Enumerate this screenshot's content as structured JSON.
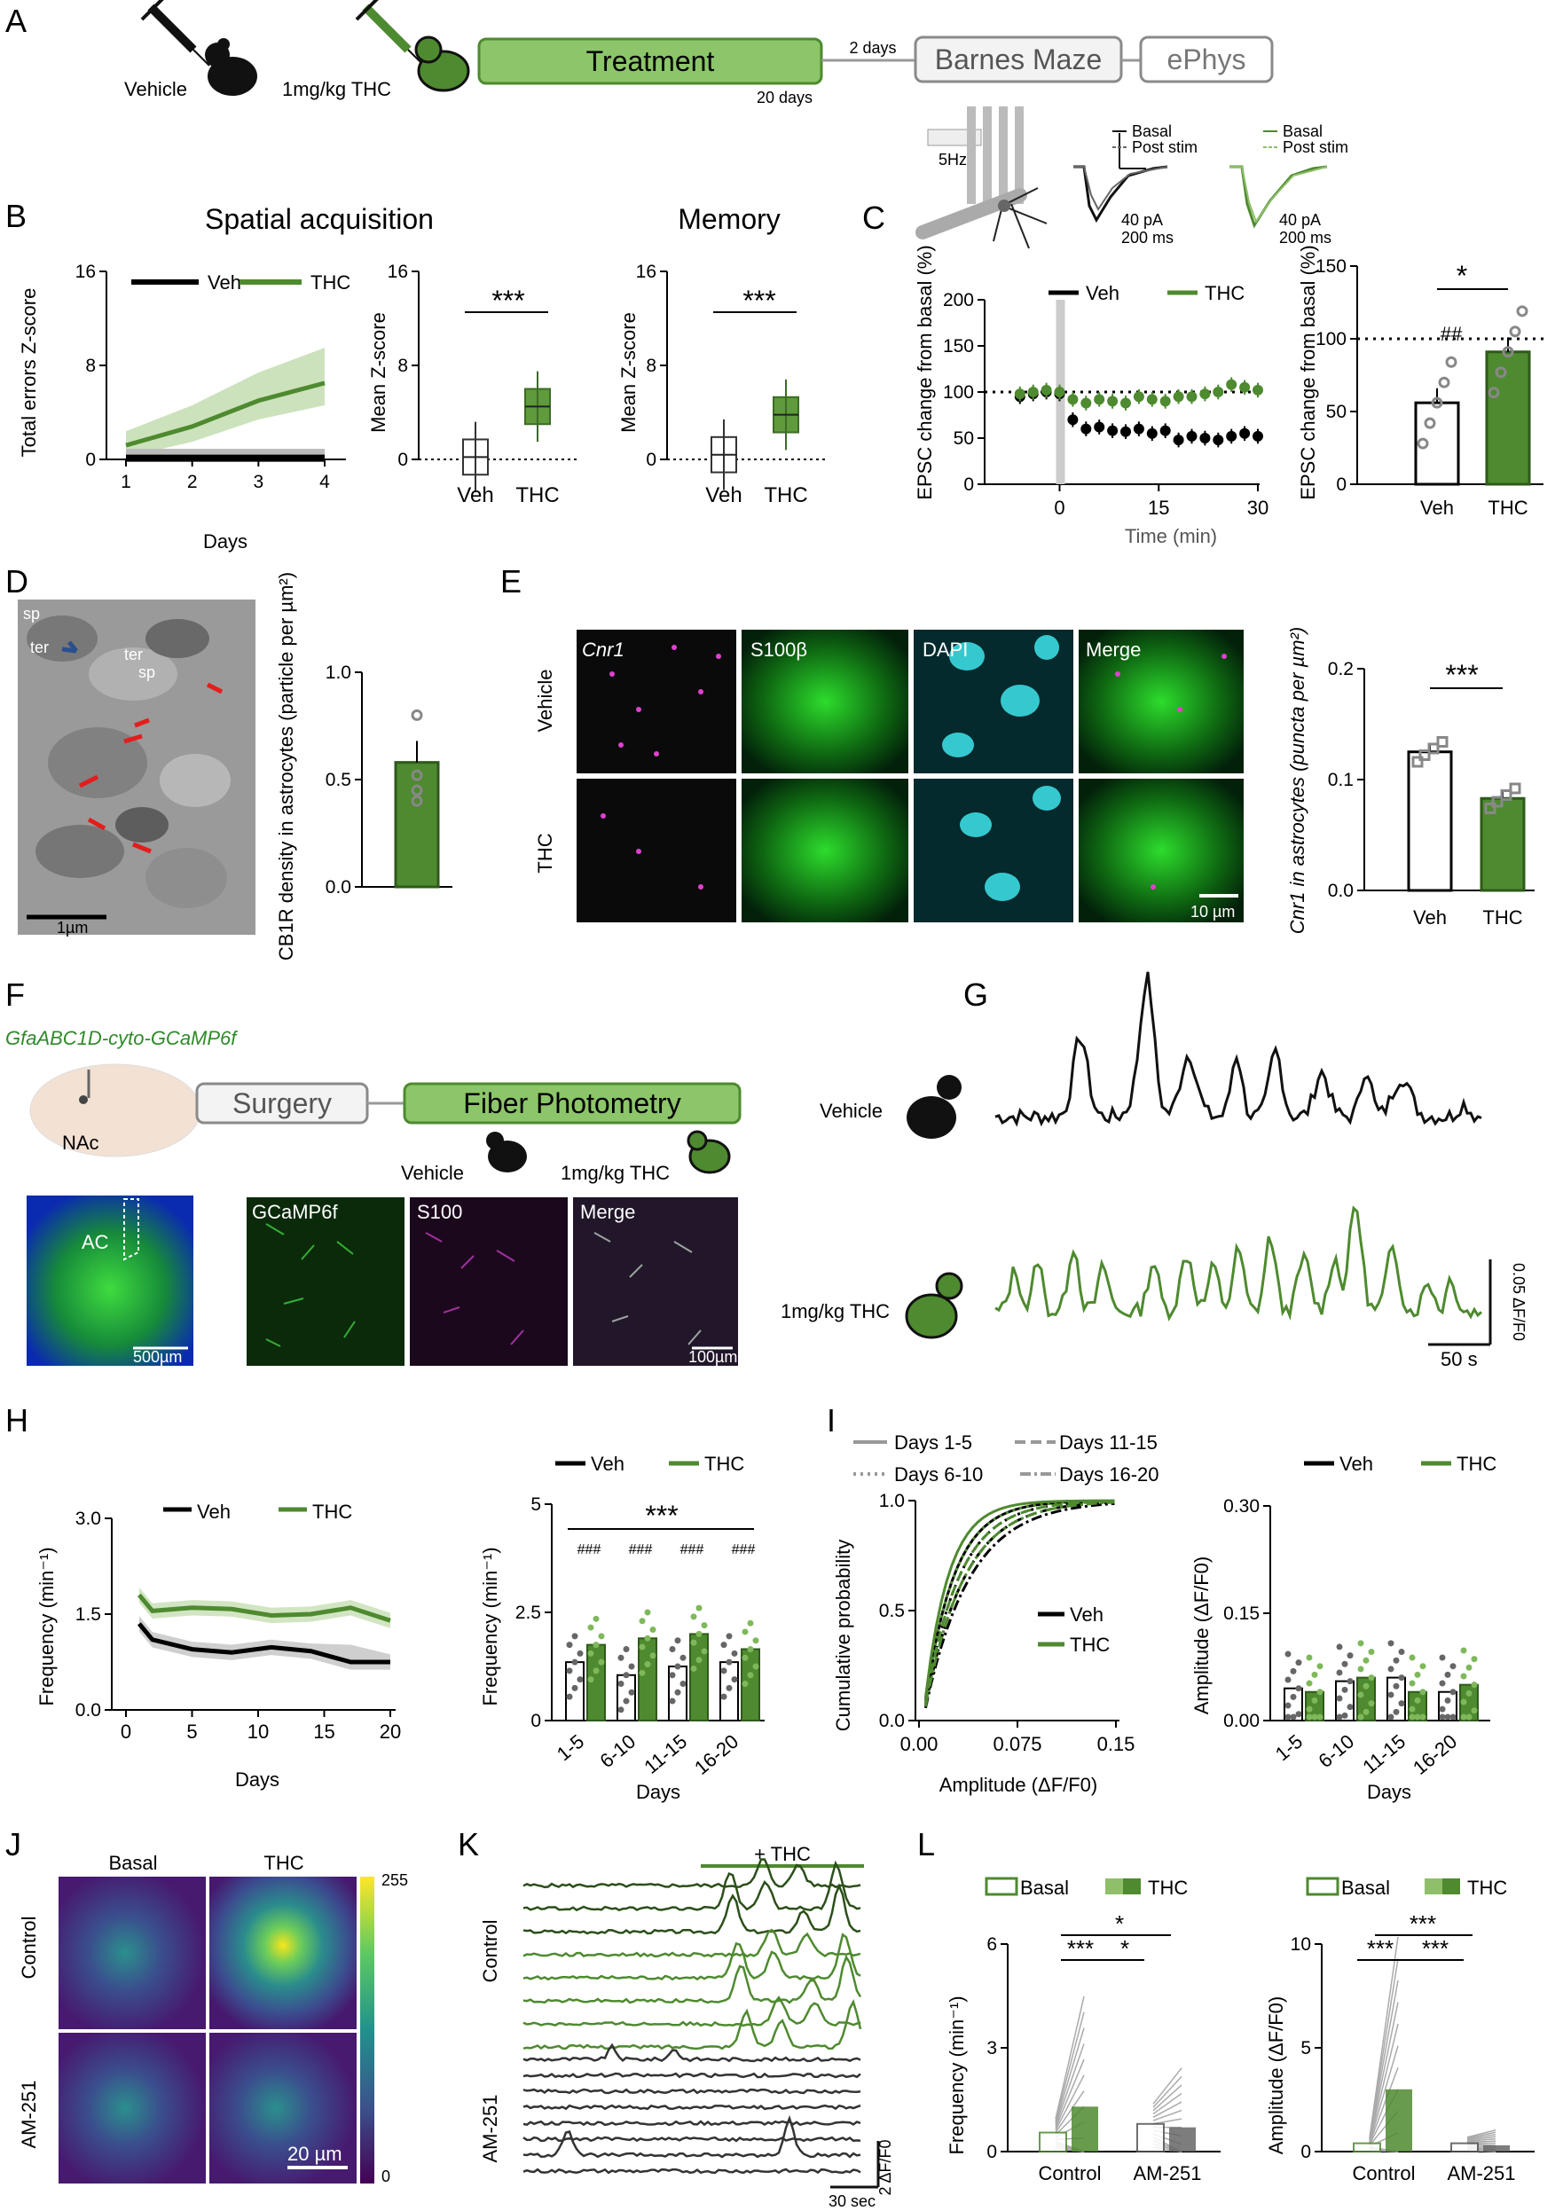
{
  "panels": {
    "A": {
      "letter": "A",
      "vehicle": "Vehicle",
      "thc": "1mg/kg THC",
      "treatment": "Treatment",
      "days20": "20 days",
      "days2": "2 days",
      "barnes": "Barnes Maze",
      "ephys": "ePhys",
      "hz": "5Hz",
      "basal": "Basal",
      "post": "Post stim",
      "pa": "40 pA",
      "ms": "200 ms"
    },
    "B": {
      "letter": "B",
      "title1": "Spatial acquisition",
      "title2": "Memory",
      "ylabel1": "Total errors Z-score",
      "ylabel2": "Mean Z-score",
      "xlabel": "Days",
      "veh": "Veh",
      "thc": "THC",
      "sig": "***"
    },
    "C": {
      "letter": "C",
      "ylabel": "EPSC change from basal (%)",
      "xlabel": "Time (min)",
      "veh": "Veh",
      "thc": "THC",
      "sig": "*",
      "hash": "##"
    },
    "D": {
      "letter": "D",
      "ylabel": "CB1R density in astrocytes (particle per µm²)",
      "scale": "1µm",
      "em_labels": [
        "sp",
        "ter",
        "ter",
        "sp"
      ]
    },
    "E": {
      "letter": "E",
      "cols": [
        "Cnr1",
        "S100β",
        "DAPI",
        "Merge"
      ],
      "rows": [
        "Vehicle",
        "THC"
      ],
      "scale": "10 µm",
      "ylabel": "Cnr1 in astrocytes (puncta per µm²)",
      "veh": "Veh",
      "thc": "THC",
      "sig": "***"
    },
    "F": {
      "letter": "F",
      "construct": "GfaABC1D-cyto-GCaMP6f",
      "nac": "NAc",
      "surgery": "Surgery",
      "photometry": "Fiber Photometry",
      "vehicle": "Vehicle",
      "thc": "1mg/kg THC",
      "ac": "AC",
      "scale1": "500µm",
      "scale2": "100µm",
      "imgs": [
        "GCaMP6f",
        "S100",
        "Merge"
      ]
    },
    "G": {
      "letter": "G",
      "vehicle": "Vehicle",
      "thc": "1mg/kg THC",
      "scale_y": "0.05 ΔF/F0",
      "scale_x": "50 s"
    },
    "H": {
      "letter": "H",
      "ylabel": "Frequency (min⁻¹)",
      "xlabel": "Days",
      "veh": "Veh",
      "thc": "THC",
      "bins": [
        "1-5",
        "6-10",
        "11-15",
        "16-20"
      ],
      "sig": "***",
      "hash": "###"
    },
    "I": {
      "letter": "I",
      "leg": [
        "Days 1-5",
        "Days 11-15",
        "Days 6-10",
        "Days 16-20"
      ],
      "ylabel": "Cumulative probability",
      "xlabel": "Amplitude (ΔF/F0)",
      "ylabel2": "Amplitude (ΔF/F0)",
      "xlabel2": "Days",
      "veh": "Veh",
      "thc": "THC"
    },
    "J": {
      "letter": "J",
      "cols": [
        "Basal",
        "THC"
      ],
      "rows": [
        "Control",
        "AM-251"
      ],
      "cbar_top": "255",
      "cbar_bot": "0",
      "scale": "20 µm"
    },
    "K": {
      "letter": "K",
      "thc": "+ THC",
      "control": "Control",
      "am": "AM-251",
      "scale_y": "2 ΔF/F0",
      "scale_x": "30 sec"
    },
    "L": {
      "letter": "L",
      "basal": "Basal",
      "thc": "THC",
      "ylabel1": "Frequency (min⁻¹)",
      "ylabel2": "Amplitude (ΔF/F0)",
      "groups": [
        "Control",
        "AM-251"
      ],
      "sig3": "***",
      "sig1": "*"
    }
  },
  "chart_data": [
    {
      "id": "B-line",
      "type": "line",
      "xlabel": "Days",
      "ylabel": "Total errors Z-score",
      "ylim": [
        0,
        16
      ],
      "categories": [
        1,
        2,
        3,
        4
      ],
      "series": [
        {
          "name": "Veh",
          "values": [
            0.1,
            0.1,
            0.1,
            0.1
          ]
        },
        {
          "name": "THC",
          "values": [
            1.2,
            2.8,
            5.0,
            6.5
          ]
        }
      ]
    },
    {
      "id": "B-box-acq",
      "type": "bar",
      "ylabel": "Mean Z-score",
      "ylim": [
        0,
        16
      ],
      "categories": [
        "Veh",
        "THC"
      ],
      "values": [
        0.2,
        4.5
      ]
    },
    {
      "id": "B-box-mem",
      "type": "bar",
      "ylabel": "Mean Z-score",
      "ylim": [
        0,
        16
      ],
      "categories": [
        "Veh",
        "THC"
      ],
      "values": [
        0.4,
        3.8
      ]
    },
    {
      "id": "C-time",
      "type": "scatter",
      "xlabel": "Time (min)",
      "ylabel": "EPSC change from basal (%)",
      "ylim": [
        0,
        200
      ],
      "series": [
        {
          "name": "Veh",
          "x": [
            -6,
            -4,
            -2,
            0,
            2,
            4,
            6,
            8,
            10,
            12,
            14,
            16,
            18,
            20,
            22,
            24,
            26,
            28,
            30
          ],
          "values": [
            95,
            98,
            100,
            98,
            70,
            60,
            62,
            58,
            57,
            60,
            55,
            58,
            48,
            52,
            50,
            48,
            52,
            55,
            52
          ]
        },
        {
          "name": "THC",
          "x": [
            -6,
            -4,
            -2,
            0,
            2,
            4,
            6,
            8,
            10,
            12,
            14,
            16,
            18,
            20,
            22,
            24,
            26,
            28,
            30
          ],
          "values": [
            98,
            100,
            102,
            100,
            92,
            88,
            92,
            90,
            88,
            95,
            92,
            90,
            95,
            95,
            98,
            100,
            108,
            105,
            102
          ]
        }
      ]
    },
    {
      "id": "C-bar",
      "type": "bar",
      "ylabel": "EPSC change from basal (%)",
      "ylim": [
        0,
        150
      ],
      "categories": [
        "Veh",
        "THC"
      ],
      "values": [
        56,
        91
      ]
    },
    {
      "id": "D-bar",
      "type": "bar",
      "ylabel": "CB1R density in astrocytes",
      "ylim": [
        0,
        1.0
      ],
      "categories": [
        ""
      ],
      "values": [
        0.58
      ]
    },
    {
      "id": "E-bar",
      "type": "bar",
      "ylabel": "Cnr1 in astrocytes",
      "ylim": [
        0,
        0.2
      ],
      "categories": [
        "Veh",
        "THC"
      ],
      "values": [
        0.125,
        0.083
      ]
    },
    {
      "id": "H-line",
      "type": "line",
      "xlabel": "Days",
      "ylabel": "Frequency (min-1)",
      "ylim": [
        0,
        3.0
      ],
      "x": [
        1,
        2,
        5,
        8,
        11,
        14,
        17,
        20
      ],
      "series": [
        {
          "name": "Veh",
          "values": [
            1.35,
            1.1,
            0.95,
            0.9,
            0.98,
            0.92,
            0.75,
            0.75
          ]
        },
        {
          "name": "THC",
          "values": [
            1.8,
            1.55,
            1.6,
            1.58,
            1.48,
            1.5,
            1.6,
            1.4
          ]
        }
      ]
    },
    {
      "id": "H-bar",
      "type": "bar",
      "ylabel": "Frequency (min-1)",
      "ylim": [
        0,
        5
      ],
      "categories": [
        "1-5",
        "6-10",
        "11-15",
        "16-20"
      ],
      "series": [
        {
          "name": "Veh",
          "values": [
            1.35,
            1.05,
            1.25,
            1.35
          ]
        },
        {
          "name": "THC",
          "values": [
            1.75,
            1.9,
            2.0,
            1.65
          ]
        }
      ]
    },
    {
      "id": "I-cdf",
      "type": "line",
      "xlabel": "Amplitude (ΔF/F0)",
      "ylabel": "Cumulative probability",
      "ylim": [
        0,
        1.0
      ],
      "xlim": [
        0,
        0.15
      ]
    },
    {
      "id": "I-bar",
      "type": "bar",
      "ylabel": "Amplitude (ΔF/F0)",
      "ylim": [
        0,
        0.3
      ],
      "categories": [
        "1-5",
        "6-10",
        "11-15",
        "16-20"
      ],
      "series": [
        {
          "name": "Veh",
          "values": [
            0.045,
            0.055,
            0.06,
            0.04
          ]
        },
        {
          "name": "THC",
          "values": [
            0.04,
            0.06,
            0.04,
            0.05
          ]
        }
      ]
    },
    {
      "id": "L-freq",
      "type": "bar",
      "ylabel": "Frequency (min-1)",
      "ylim": [
        0,
        6
      ],
      "categories": [
        "Control",
        "AM-251"
      ],
      "series": [
        {
          "name": "Basal",
          "values": [
            0.55,
            0.8
          ]
        },
        {
          "name": "THC",
          "values": [
            1.3,
            0.7
          ]
        }
      ]
    },
    {
      "id": "L-amp",
      "type": "bar",
      "ylabel": "Amplitude (ΔF/F0)",
      "ylim": [
        0,
        10
      ],
      "categories": [
        "Control",
        "AM-251"
      ],
      "series": [
        {
          "name": "Basal",
          "values": [
            0.4,
            0.4
          ]
        },
        {
          "name": "THC",
          "values": [
            3.0,
            0.3
          ]
        }
      ]
    }
  ],
  "colors": {
    "veh": "#000000",
    "thc": "#4e8a2f",
    "thc_light": "#8fbf6a",
    "grey": "#8a8a8a"
  }
}
